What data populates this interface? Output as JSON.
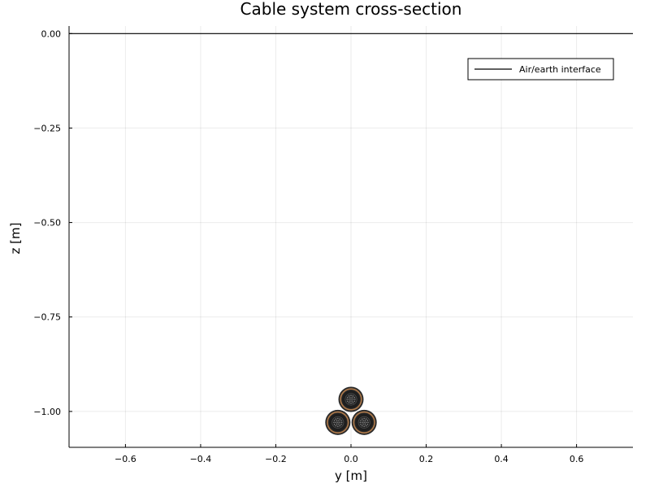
{
  "chart_data": {
    "type": "scatter",
    "title": "Cable system cross-section",
    "xlabel": "y [m]",
    "ylabel": "z [m]",
    "xlim": [
      -0.75,
      0.75
    ],
    "ylim": [
      -1.095,
      0.02
    ],
    "xticks": [
      -0.6,
      -0.4,
      -0.2,
      0.0,
      0.2,
      0.4,
      0.6
    ],
    "xtick_labels": [
      "−0.6",
      "−0.4",
      "−0.2",
      "0.0",
      "0.2",
      "0.4",
      "0.6"
    ],
    "yticks": [
      0.0,
      -0.25,
      -0.5,
      -0.75,
      -1.0
    ],
    "ytick_labels": [
      "0.00",
      "−0.25",
      "−0.50",
      "−0.75",
      "−1.00"
    ],
    "grid": true,
    "legend": {
      "position": "top-right",
      "entries": [
        "Air/earth interface"
      ]
    },
    "series": [
      {
        "name": "Air/earth interface",
        "type": "line",
        "x": [
          -0.75,
          0.75
        ],
        "y": [
          0.0,
          0.0
        ],
        "color": "#000000"
      }
    ],
    "cables": [
      {
        "y": 0.0,
        "z": -0.968
      },
      {
        "y": -0.035,
        "z": -1.029
      },
      {
        "y": 0.035,
        "z": -1.029
      }
    ],
    "colors": {
      "outer_jacket": "#2b2b2b",
      "screen": "#b07a4a",
      "insulation": "#1e1e1e",
      "conductor": "#8a8a8a"
    }
  }
}
